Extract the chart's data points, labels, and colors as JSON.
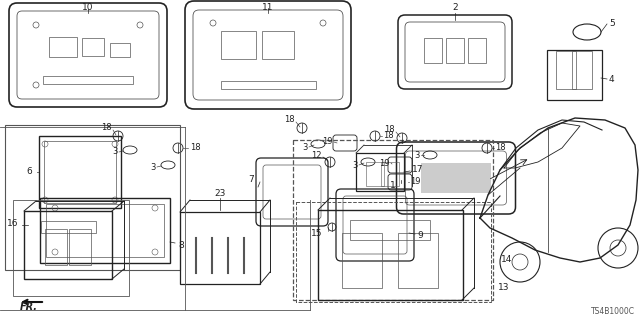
{
  "bg_color": "#ffffff",
  "line_color": "#222222",
  "gray": "#555555",
  "lgray": "#999999",
  "diagram_code": "TS4B1000C",
  "label_fs": 6.5,
  "figsize": [
    6.4,
    3.2
  ],
  "dpi": 100
}
